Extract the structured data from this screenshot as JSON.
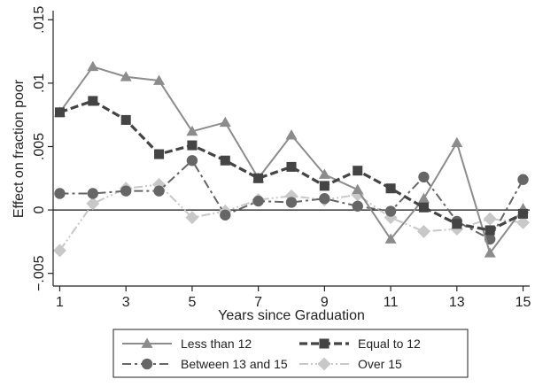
{
  "chart_data": {
    "type": "line",
    "title": "",
    "xlabel": "Years since Graduation",
    "ylabel": "Effect on fraction poor",
    "xlim": [
      0.8,
      15.2
    ],
    "ylim": [
      -0.006,
      0.016
    ],
    "x_ticks": [
      1,
      3,
      5,
      7,
      9,
      11,
      13,
      15
    ],
    "x_tick_labels": [
      "1",
      "3",
      "5",
      "7",
      "9",
      "11",
      "13",
      "15"
    ],
    "y_ticks": [
      -0.005,
      0,
      0.005,
      0.01,
      0.015
    ],
    "y_tick_labels": [
      "−.005",
      "0",
      ".005",
      ".01",
      ".015"
    ],
    "reference_line_y": 0,
    "grid": false,
    "legend_position": "bottom",
    "x": [
      1,
      2,
      3,
      4,
      5,
      6,
      7,
      8,
      9,
      10,
      11,
      12,
      13,
      14,
      15
    ],
    "series": [
      {
        "name": "Less than 12",
        "color": "#8c8c8c",
        "marker": "triangle",
        "line_style": "solid",
        "values": [
          0.0077,
          0.0113,
          0.0105,
          0.0102,
          0.0062,
          0.0069,
          0.0025,
          0.0059,
          0.0028,
          0.0016,
          -0.0023,
          0.0009,
          0.0053,
          -0.0034,
          0.0001
        ]
      },
      {
        "name": "Equal to 12",
        "color": "#444444",
        "marker": "square",
        "line_style": "dash",
        "values": [
          0.0077,
          0.0086,
          0.0071,
          0.0044,
          0.0051,
          0.0039,
          0.0025,
          0.0034,
          0.0019,
          0.0031,
          0.0017,
          0.0002,
          -0.0011,
          -0.0016,
          -0.0003
        ]
      },
      {
        "name": "Between 13 and 15",
        "color": "#666666",
        "marker": "circle",
        "line_style": "dashdot",
        "values": [
          0.0013,
          0.0013,
          0.0015,
          0.0015,
          0.0039,
          -0.0004,
          0.0007,
          0.0006,
          0.0009,
          0.0003,
          -0.0001,
          0.0026,
          -0.0009,
          -0.0023,
          0.0024
        ]
      },
      {
        "name": "Over 15",
        "color": "#c8c8c8",
        "marker": "diamond",
        "line_style": "dashdotdot",
        "values": [
          -0.0032,
          0.0005,
          0.0017,
          0.002,
          -0.0006,
          -0.0001,
          0.0008,
          0.0011,
          0.0008,
          0.0012,
          -0.0006,
          -0.0017,
          -0.0015,
          -0.0007,
          -0.001
        ]
      }
    ]
  }
}
